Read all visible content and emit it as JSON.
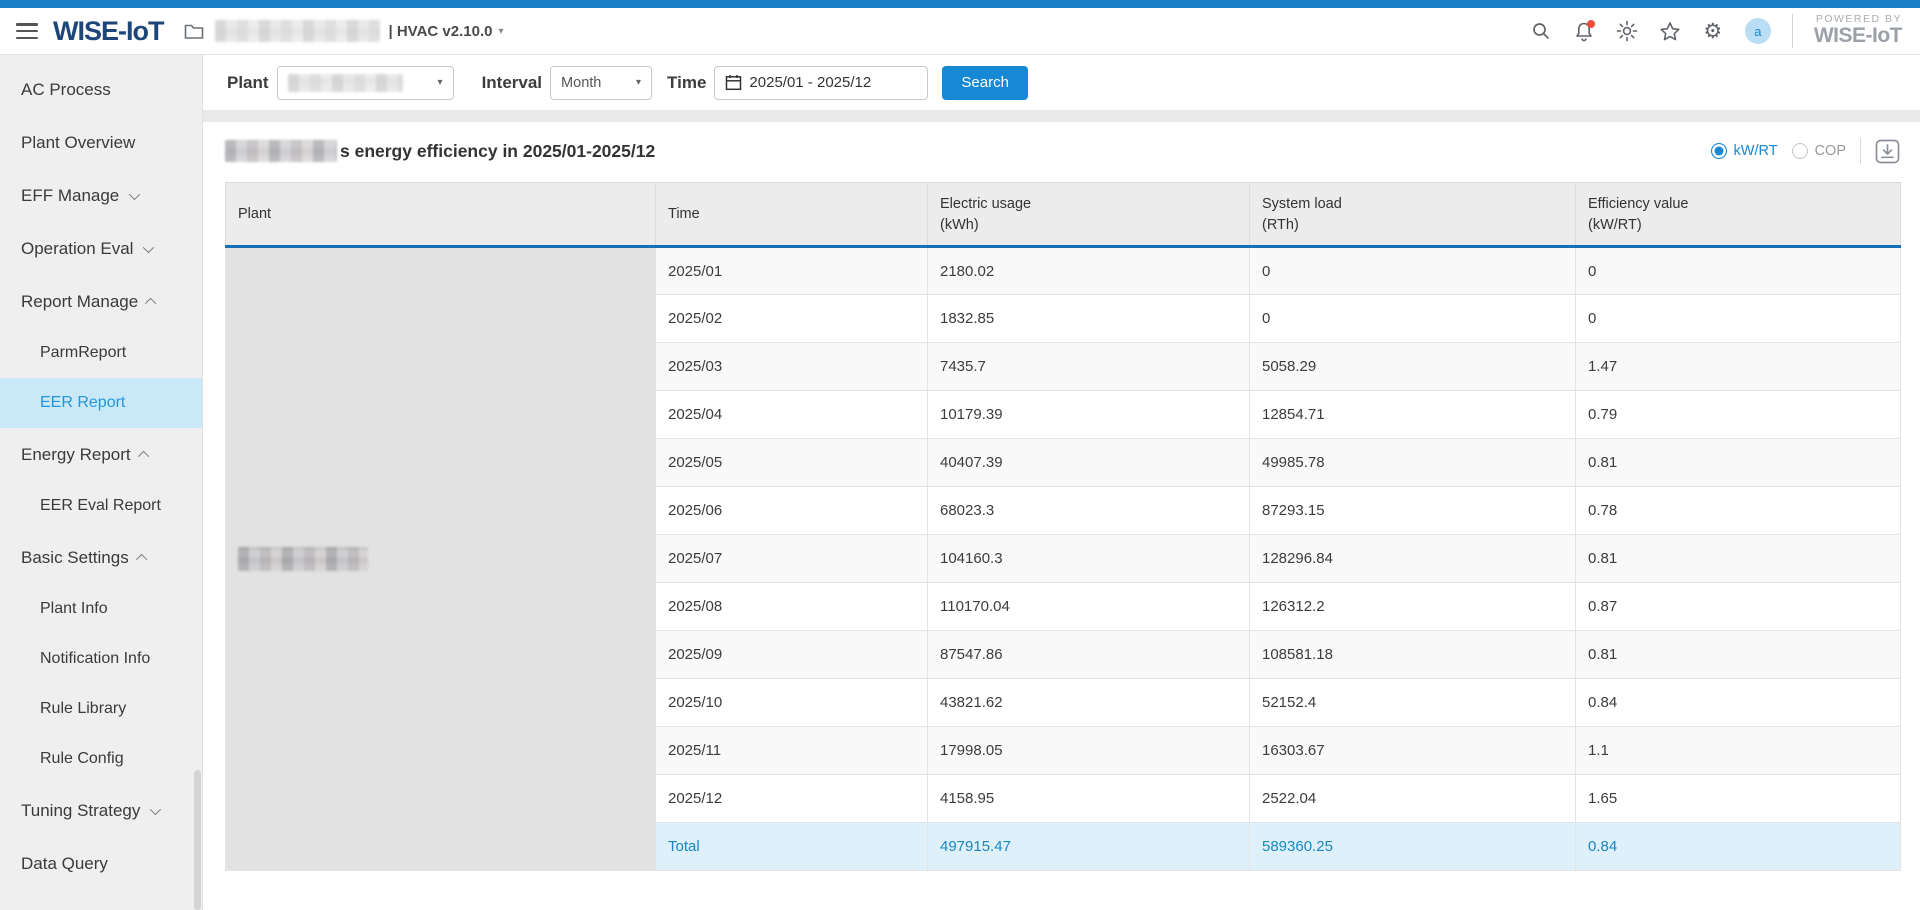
{
  "colors": {
    "accent_blue": "#1789d4",
    "top_strip": "#1b80c8",
    "logo_navy": "#1e4679",
    "table_header_border": "#1770b4",
    "active_nav_bg": "#c9e8f8",
    "total_row_bg": "#def0f9",
    "notification_badge": "#e8503a"
  },
  "header": {
    "logo": "WISE-IoT",
    "version": "| HVAC v2.10.0",
    "caret": "▾",
    "avatar_letter": "a",
    "powered_by_line1": "POWERED BY",
    "powered_by_line2": "WISE-IoT"
  },
  "sidebar": {
    "items": [
      {
        "label": "AC Process"
      },
      {
        "label": "Plant Overview"
      },
      {
        "label": "EFF Manage",
        "chevron": "down"
      },
      {
        "label": "Operation Eval",
        "chevron": "down"
      },
      {
        "label": "Report Manage",
        "chevron": "up"
      },
      {
        "label": "ParmReport",
        "sub": true
      },
      {
        "label": "EER Report",
        "sub": true,
        "active": true
      },
      {
        "label": "Energy Report",
        "chevron": "up"
      },
      {
        "label": "EER Eval Report",
        "sub": true
      },
      {
        "label": "Basic Settings",
        "chevron": "up"
      },
      {
        "label": "Plant Info",
        "sub": true
      },
      {
        "label": "Notification Info",
        "sub": true
      },
      {
        "label": "Rule Library",
        "sub": true
      },
      {
        "label": "Rule Config",
        "sub": true
      },
      {
        "label": "Tuning Strategy",
        "chevron": "down"
      },
      {
        "label": "Data Query"
      }
    ]
  },
  "filters": {
    "plant_label": "Plant",
    "interval_label": "Interval",
    "interval_value": "Month",
    "time_label": "Time",
    "time_value": "2025/01  -  2025/12",
    "search_label": "Search",
    "dd_caret": "▾"
  },
  "report": {
    "title_suffix": "s energy efficiency in 2025/01-2025/12",
    "unit_selected": "kW/RT",
    "unit_other": "COP"
  },
  "table": {
    "columns": [
      {
        "title": "Plant",
        "subtitle": ""
      },
      {
        "title": "Time",
        "subtitle": ""
      },
      {
        "title": "Electric usage",
        "subtitle": "(kWh)"
      },
      {
        "title": "System load",
        "subtitle": "(RTh)"
      },
      {
        "title": "Efficiency value",
        "subtitle": "(kW/RT)"
      }
    ],
    "rows": [
      {
        "time": "2025/01",
        "electric": "2180.02",
        "load": "0",
        "eff": "0"
      },
      {
        "time": "2025/02",
        "electric": "1832.85",
        "load": "0",
        "eff": "0"
      },
      {
        "time": "2025/03",
        "electric": "7435.7",
        "load": "5058.29",
        "eff": "1.47"
      },
      {
        "time": "2025/04",
        "electric": "10179.39",
        "load": "12854.71",
        "eff": "0.79"
      },
      {
        "time": "2025/05",
        "electric": "40407.39",
        "load": "49985.78",
        "eff": "0.81"
      },
      {
        "time": "2025/06",
        "electric": "68023.3",
        "load": "87293.15",
        "eff": "0.78"
      },
      {
        "time": "2025/07",
        "electric": "104160.3",
        "load": "128296.84",
        "eff": "0.81"
      },
      {
        "time": "2025/08",
        "electric": "110170.04",
        "load": "126312.2",
        "eff": "0.87"
      },
      {
        "time": "2025/09",
        "electric": "87547.86",
        "load": "108581.18",
        "eff": "0.81"
      },
      {
        "time": "2025/10",
        "electric": "43821.62",
        "load": "52152.4",
        "eff": "0.84"
      },
      {
        "time": "2025/11",
        "electric": "17998.05",
        "load": "16303.67",
        "eff": "1.1"
      },
      {
        "time": "2025/12",
        "electric": "4158.95",
        "load": "2522.04",
        "eff": "1.65"
      }
    ],
    "total": {
      "label": "Total",
      "electric": "497915.47",
      "load": "589360.25",
      "eff": "0.84"
    }
  }
}
